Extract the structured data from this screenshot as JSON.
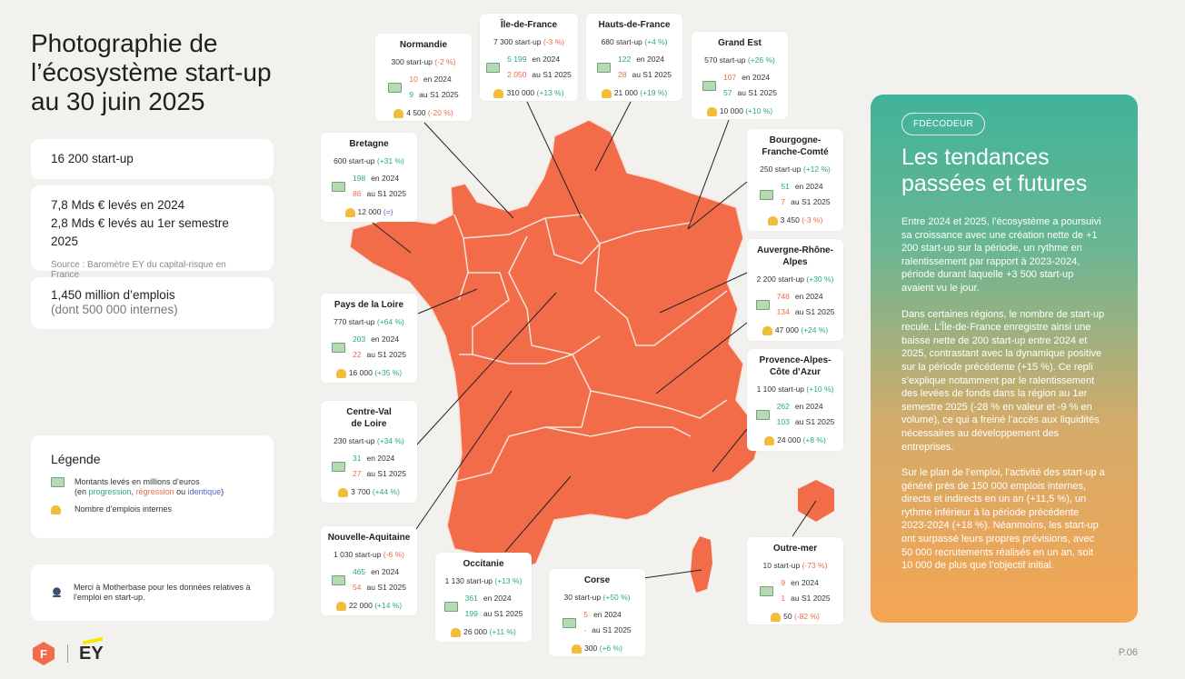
{
  "title_lines": [
    "Photographie de",
    "l’écosystème start-up",
    "au 30 juin 2025"
  ],
  "stats": {
    "startups": "16 200 start-up",
    "raised_2024": "7,8 Mds € levés en 2024",
    "raised_s1": "2,8 Mds € levés au 1er semestre 2025",
    "source": "Source : Baromètre EY du capital-risque en France",
    "jobs": "1,450 million d’emplois",
    "jobs_sub": "(dont 500 000 internes)"
  },
  "legend": {
    "title": "Légende",
    "money_label": "Montants levés en millions d’euros",
    "money_sub_prefix": "(en ",
    "progression": "progression",
    "regression": "régression",
    "or_word": " ou ",
    "identique": "identique",
    "money_sub_suffix": ")",
    "people_label": "Nombre d’emplois internes",
    "comma": ", "
  },
  "thanks": "Merci à Motherbase pour les données relatives à l’emploi en start-up.",
  "labels": {
    "y2024": "en 2024",
    "s1": "au S1 2025"
  },
  "regions": {
    "normandie": {
      "name": "Normandie",
      "startups": "300 start-up",
      "startups_delta": "(-2 %)",
      "v2024": "10",
      "vs1": "9",
      "jobs": "4 500",
      "jobs_delta": "(-20 %)"
    },
    "idf": {
      "name": "Île-de-France",
      "startups": "7 300 start-up",
      "startups_delta": "(-3 %)",
      "v2024": "5 199",
      "vs1": "2 050",
      "jobs": "310 000",
      "jobs_delta": "(+13 %)"
    },
    "hdf": {
      "name": "Hauts-de-France",
      "startups": "680 start-up",
      "startups_delta": "(+4 %)",
      "v2024": "122",
      "vs1": "28",
      "jobs": "21 000",
      "jobs_delta": "(+19 %)"
    },
    "grandest": {
      "name": "Grand Est",
      "startups": "570 start-up",
      "startups_delta": "(+26 %)",
      "v2024": "107",
      "vs1": "57",
      "jobs": "10 000",
      "jobs_delta": "(+10 %)"
    },
    "bretagne": {
      "name": "Bretagne",
      "startups": "600 start-up",
      "startups_delta": "(+31 %)",
      "v2024": "198",
      "vs1": "86",
      "jobs": "12 000",
      "jobs_delta": "(=)"
    },
    "bfc": {
      "name1": "Bourgogne-",
      "name2": "Franche-Comté",
      "startups": "250 start-up",
      "startups_delta": "(+12 %)",
      "v2024": "51",
      "vs1": "7",
      "jobs": "3 450",
      "jobs_delta": "(-3 %)"
    },
    "ara": {
      "name1": "Auvergne-Rhône-",
      "name2": "Alpes",
      "startups": "2 200 start-up",
      "startups_delta": "(+30 %)",
      "v2024": "748",
      "vs1": "134",
      "jobs": "47 000",
      "jobs_delta": "(+24 %)"
    },
    "pdl": {
      "name": "Pays de la Loire",
      "startups": "770 start-up",
      "startups_delta": "(+64 %)",
      "v2024": "203",
      "vs1": "22",
      "jobs": "16 000",
      "jobs_delta": "(+35 %)"
    },
    "paca": {
      "name1": "Provence-Alpes-",
      "name2": "Côte d’Azur",
      "startups": "1 100 start-up",
      "startups_delta": "(+10 %)",
      "v2024": "262",
      "vs1": "103",
      "jobs": "24 000",
      "jobs_delta": "(+8 %)"
    },
    "cvl": {
      "name1": "Centre-Val",
      "name2": "de Loire",
      "startups": "230 start-up",
      "startups_delta": "(+34 %)",
      "v2024": "31",
      "vs1": "27",
      "jobs": "3 700",
      "jobs_delta": "(+44 %)"
    },
    "na": {
      "name": "Nouvelle-Aquitaine",
      "startups": "1 030 start-up",
      "startups_delta": "(-6 %)",
      "v2024": "465",
      "vs1": "54",
      "jobs": "22 000",
      "jobs_delta": "(+14 %)"
    },
    "occitanie": {
      "name": "Occitanie",
      "startups": "1 130 start-up",
      "startups_delta": "(+13 %)",
      "v2024": "361",
      "vs1": "199",
      "jobs": "26 000",
      "jobs_delta": "(+11 %)"
    },
    "corse": {
      "name": "Corse",
      "startups": "30 start-up",
      "startups_delta": "(+50 %)",
      "v2024": "5",
      "vs1": "-",
      "jobs": "300",
      "jobs_delta": "(+6 %)"
    },
    "outremer": {
      "name": "Outre-mer",
      "startups": "10 start-up",
      "startups_delta": "(-73 %)",
      "v2024": "9",
      "vs1": "1",
      "jobs": "50",
      "jobs_delta": "(-82 %)"
    }
  },
  "panel": {
    "tag": "FDÉCODEUR",
    "title_lines": [
      "Les tendances",
      "passées et futures"
    ],
    "p1": "Entre 2024 et 2025, l’écosystème a poursuivi sa croissance avec une création nette de +1 200 start-up sur la période, un rythme en ralentissement par rapport à 2023-2024, période durant laquelle +3 500 start-up avaient vu le jour.",
    "p2": "Dans certaines régions, le nombre de start-up recule. L’Île-de-France enregistre ainsi une baisse nette de 200 start-up entre 2024 et 2025, contrastant avec la dynamique positive sur la période précédente (+15 %). Ce repli s’explique notamment par le ralentissement des levées de fonds dans la région au 1er semestre 2025 (-28 % en valeur et -9 % en volume), ce qui a freiné l’accès aux liquidités nécessaires au développement des entreprises.",
    "p3": "Sur le plan de l’emploi, l’activité des start-up a généré près de 150 000 emplois internes, directs et indirects en un an (+11,5 %), un rythme inférieur à la période précédente 2023-2024 (+18 %). Néanmoins, les start-up ont surpassé leurs propres prévisions, avec 50 000 recrutements réalisés en un an, soit 10 000 de plus que l’objectif initial."
  },
  "footer": {
    "brand": "EY",
    "page": "P.06"
  },
  "colors": {
    "map": "#f26c4a",
    "panel_top": "#40b39a",
    "panel_bottom": "#f5a553",
    "up": "#2aa88a",
    "down": "#ee6a4a",
    "same": "#5466c8"
  }
}
